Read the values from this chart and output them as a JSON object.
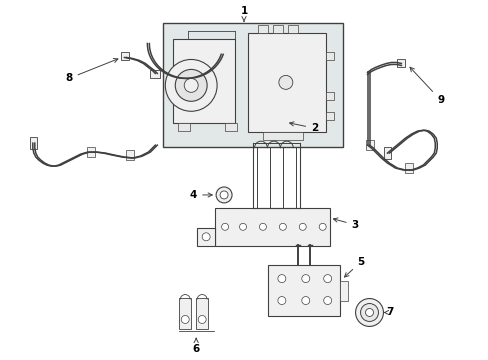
{
  "bg_color": "#ffffff",
  "lc": "#404040",
  "box_fill": "#e8e8e8",
  "part_fill": "#f5f5f5",
  "lw_main": 0.8,
  "lw_wire": 1.1
}
